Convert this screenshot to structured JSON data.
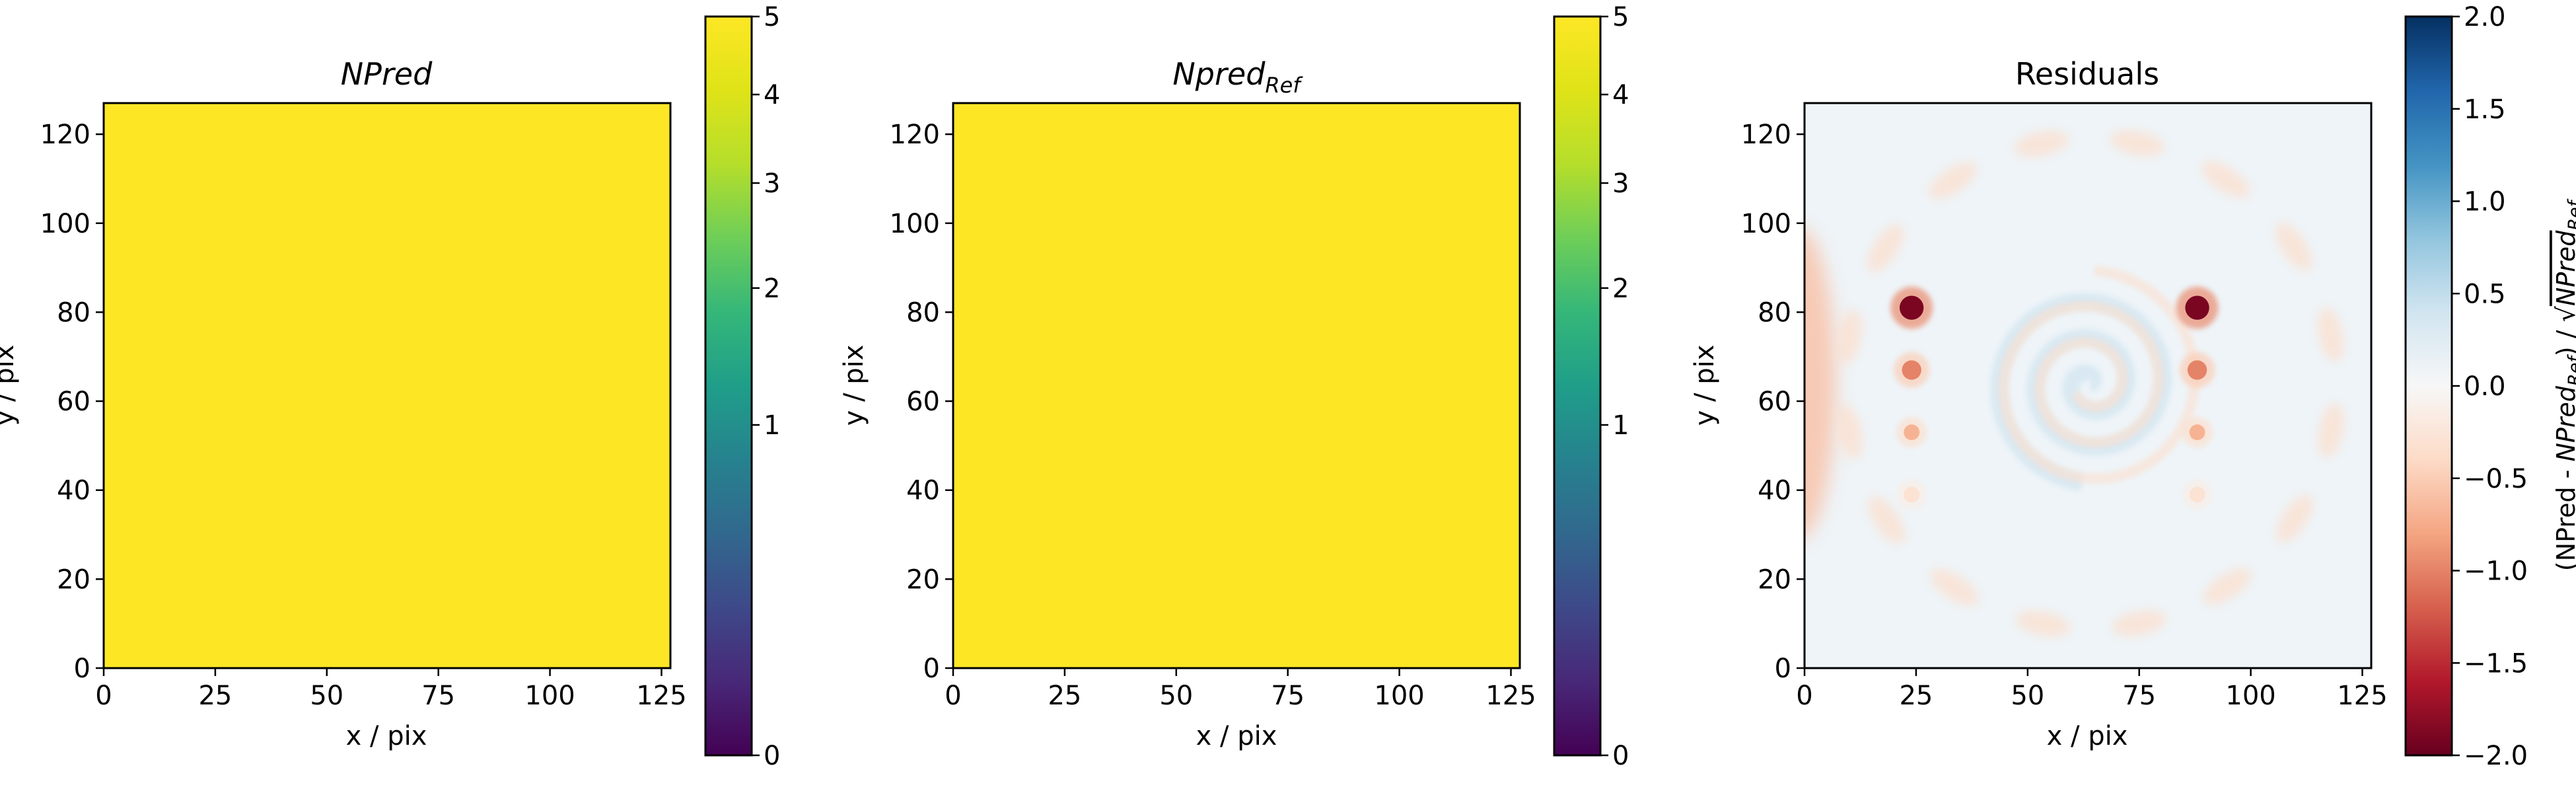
{
  "chart_data": [
    {
      "type": "heatmap",
      "title_base": "NPred",
      "title_sub": "",
      "xlabel": "x / pix",
      "ylabel": "y / pix",
      "xlim": [
        0,
        127
      ],
      "ylim": [
        0,
        127
      ],
      "x_ticks": [
        0,
        25,
        50,
        75,
        100,
        125
      ],
      "y_ticks": [
        0,
        20,
        40,
        60,
        80,
        100,
        120
      ],
      "fill_value": 5,
      "colormap": "viridis",
      "colorbar": {
        "scale": "sqrt",
        "range": [
          0,
          5
        ],
        "ticks": [
          0,
          1,
          2,
          3,
          4,
          5
        ],
        "tick_labels": [
          "0",
          "1",
          "2",
          "3",
          "4",
          "5"
        ],
        "label": ""
      }
    },
    {
      "type": "heatmap",
      "title_base": "Npred",
      "title_sub": "Ref",
      "xlabel": "x / pix",
      "ylabel": "y / pix",
      "xlim": [
        0,
        127
      ],
      "ylim": [
        0,
        127
      ],
      "x_ticks": [
        0,
        25,
        50,
        75,
        100,
        125
      ],
      "y_ticks": [
        0,
        20,
        40,
        60,
        80,
        100,
        120
      ],
      "fill_value": 5,
      "colormap": "viridis",
      "colorbar": {
        "scale": "sqrt",
        "range": [
          0,
          5
        ],
        "ticks": [
          0,
          1,
          2,
          3,
          4,
          5
        ],
        "tick_labels": [
          "0",
          "1",
          "2",
          "3",
          "4",
          "5"
        ],
        "label": ""
      }
    },
    {
      "type": "heatmap",
      "title": "Residuals",
      "xlabel": "x / pix",
      "ylabel": "y / pix",
      "xlim": [
        0,
        127
      ],
      "ylim": [
        0,
        127
      ],
      "x_ticks": [
        0,
        25,
        50,
        75,
        100,
        125
      ],
      "y_ticks": [
        0,
        20,
        40,
        60,
        80,
        100,
        120
      ],
      "colormap": "RdBu",
      "colorbar": {
        "scale": "linear",
        "range": [
          -2.0,
          2.0
        ],
        "ticks": [
          2.0,
          1.5,
          1.0,
          0.5,
          0.0,
          -0.5,
          -1.0,
          -1.5,
          -2.0
        ],
        "tick_labels": [
          "2.0",
          "1.5",
          "1.0",
          "0.5",
          "0.0",
          "−0.5",
          "−1.0",
          "−1.5",
          "−2.0"
        ],
        "label_parts": [
          "(NPred - ",
          "NPred",
          "Ref",
          ") / ",
          "√",
          "NPred",
          "Ref"
        ]
      },
      "features": {
        "background_value": 0.1,
        "point_sources": [
          {
            "x": 24,
            "y": 81,
            "value": -1.9
          },
          {
            "x": 24,
            "y": 67,
            "value": -1.0
          },
          {
            "x": 24,
            "y": 53,
            "value": -0.7
          },
          {
            "x": 24,
            "y": 39,
            "value": -0.3
          },
          {
            "x": 88,
            "y": 81,
            "value": -1.9
          },
          {
            "x": 88,
            "y": 67,
            "value": -1.0
          },
          {
            "x": 88,
            "y": 53,
            "value": -0.7
          },
          {
            "x": 88,
            "y": 39,
            "value": -0.3
          }
        ],
        "left_edge_band": {
          "x": 0,
          "y": 64,
          "value": -0.6
        },
        "ring": {
          "cx": 64,
          "cy": 64,
          "radius": 55,
          "value": -0.35
        },
        "spiral": {
          "cx": 64,
          "cy": 64,
          "value": 0.35
        }
      }
    }
  ]
}
